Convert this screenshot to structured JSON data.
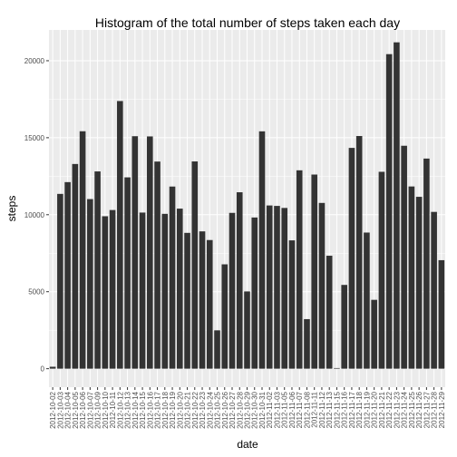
{
  "chart_data": {
    "type": "bar",
    "title": "Histogram of the total number of steps taken each day",
    "xlabel": "date",
    "ylabel": "steps",
    "ylim": [
      -1200,
      22000
    ],
    "yticks": [
      0,
      5000,
      10000,
      15000,
      20000
    ],
    "grid": true,
    "legend": "none",
    "colors": {
      "panel": "#ebebeb",
      "grid": "#ffffff",
      "bar": "#333333"
    },
    "categories": [
      "2012-10-02",
      "2012-10-03",
      "2012-10-04",
      "2012-10-05",
      "2012-10-06",
      "2012-10-07",
      "2012-10-09",
      "2012-10-10",
      "2012-10-11",
      "2012-10-12",
      "2012-10-13",
      "2012-10-14",
      "2012-10-15",
      "2012-10-16",
      "2012-10-17",
      "2012-10-18",
      "2012-10-19",
      "2012-10-20",
      "2012-10-21",
      "2012-10-22",
      "2012-10-23",
      "2012-10-24",
      "2012-10-25",
      "2012-10-26",
      "2012-10-27",
      "2012-10-28",
      "2012-10-29",
      "2012-10-30",
      "2012-10-31",
      "2012-11-02",
      "2012-11-03",
      "2012-11-05",
      "2012-11-06",
      "2012-11-07",
      "2012-11-08",
      "2012-11-11",
      "2012-11-12",
      "2012-11-13",
      "2012-11-15",
      "2012-11-16",
      "2012-11-17",
      "2012-11-18",
      "2012-11-19",
      "2012-11-20",
      "2012-11-21",
      "2012-11-22",
      "2012-11-23",
      "2012-11-24",
      "2012-11-25",
      "2012-11-26",
      "2012-11-27",
      "2012-11-28",
      "2012-11-29"
    ],
    "values": [
      126,
      11352,
      12116,
      13294,
      15420,
      11015,
      12811,
      9900,
      10304,
      17382,
      12426,
      15098,
      10139,
      15084,
      13452,
      10056,
      11829,
      10395,
      8821,
      13460,
      8918,
      8355,
      2492,
      6778,
      10119,
      11458,
      5018,
      9819,
      15414,
      10600,
      10571,
      10439,
      8334,
      12883,
      3219,
      12608,
      10765,
      7336,
      41,
      5441,
      14339,
      15110,
      8841,
      4472,
      12787,
      20427,
      21194,
      14478,
      11834,
      11162,
      13646,
      10183,
      7047
    ],
    "tick_labels": [
      "2012-10-02",
      "2012-10-03",
      "2012-10-04",
      "2012-10-05",
      "2012-10-06",
      "2012-10-07",
      "2012-10-09",
      "2012-10-10",
      "2012-10-11",
      "2012-10-12",
      "2012-10-13",
      "2012-10-14",
      "2012-10-15",
      "2012-10-16",
      "2012-10-17",
      "2012-10-18",
      "2012-10-19",
      "2012-10-20",
      "2012-10-21",
      "2012-10-22",
      "2012-10-23",
      "2012-10-24",
      "2012-10-25",
      "2012-10-26",
      "2012-10-27",
      "2012-10-28",
      "2012-10-29",
      "2012-10-30",
      "2012-10-31",
      "2012-11-02",
      "2012-11-03",
      "2012-11-05",
      "2012-11-06",
      "2012-11-07",
      "2012-11-08",
      "2012-11-11",
      "2012-11-12",
      "2012-11-13",
      "2012-11-15",
      "2012-11-16",
      "2012-11-17",
      "2012-11-18",
      "2012-11-19",
      "2012-11-20",
      "2012-11-21",
      "2012-11-22",
      "2012-11-23",
      "2012-11-24",
      "2012-11-25",
      "2012-11-26",
      "2012-11-27",
      "2012-11-28",
      "2012-11-29"
    ]
  }
}
